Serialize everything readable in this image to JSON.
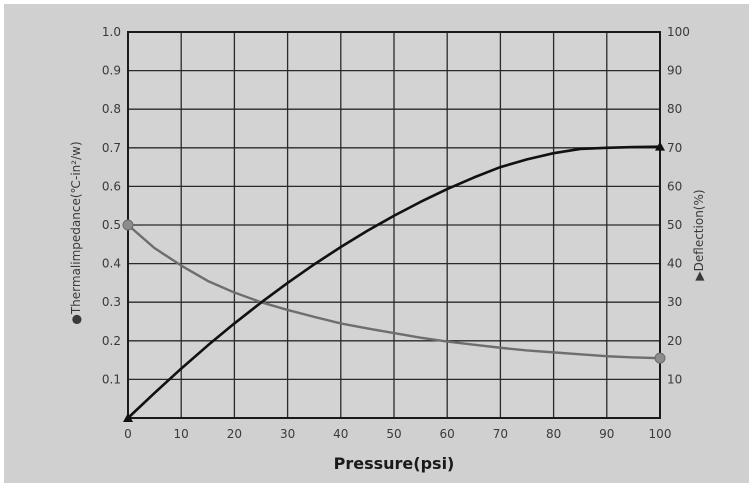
{
  "chart_data": {
    "type": "line",
    "xlabel": "Pressure(psi)",
    "ylabel_left": "●Thermalimpedance(℃-in²/w)",
    "ylabel_right": "▶Deflection(%)",
    "x_ticks": [
      "0",
      "10",
      "20",
      "30",
      "40",
      "50",
      "60",
      "70",
      "80",
      "90",
      "100"
    ],
    "y_left_ticks": [
      "",
      "0.1",
      "0.2",
      "0.3",
      "0.4",
      "0.5",
      "0.6",
      "0.7",
      "0.8",
      "0.9",
      "1.0"
    ],
    "y_right_ticks": [
      "",
      "10",
      "20",
      "30",
      "40",
      "50",
      "60",
      "70",
      "80",
      "90",
      "100"
    ],
    "xlim": [
      0,
      100
    ],
    "ylim_left": [
      0,
      1.0
    ],
    "ylim_right": [
      0,
      100
    ],
    "grid": true,
    "series": [
      {
        "axis": "left",
        "color": "#6e6e6e",
        "marker": "circle",
        "x": [
          0,
          5,
          10,
          15,
          20,
          25,
          30,
          35,
          40,
          45,
          50,
          55,
          60,
          65,
          70,
          75,
          80,
          85,
          90,
          95,
          100
        ],
        "values": [
          0.5,
          0.44,
          0.395,
          0.355,
          0.325,
          0.3,
          0.28,
          0.262,
          0.245,
          0.232,
          0.22,
          0.208,
          0.198,
          0.19,
          0.182,
          0.175,
          0.17,
          0.165,
          0.16,
          0.157,
          0.155
        ]
      },
      {
        "axis": "right",
        "color": "#111111",
        "marker": "triangle",
        "x": [
          0,
          5,
          10,
          15,
          20,
          25,
          30,
          35,
          40,
          45,
          50,
          55,
          60,
          65,
          70,
          75,
          80,
          85,
          90,
          95,
          100
        ],
        "values": [
          0,
          6.5,
          12.8,
          18.8,
          24.5,
          29.9,
          35.0,
          39.8,
          44.3,
          48.5,
          52.4,
          56.0,
          59.3,
          62.3,
          65.0,
          67.0,
          68.6,
          69.7,
          70.0,
          70.2,
          70.3
        ]
      }
    ]
  }
}
